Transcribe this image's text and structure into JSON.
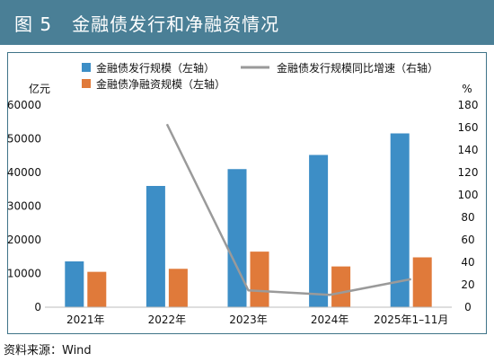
{
  "header": {
    "title": "图 5   金融债发行和净融资情况"
  },
  "footer": {
    "source": "资料来源：Wind"
  },
  "colors": {
    "title_bg": "#4a7f96",
    "frame": "#3f7488",
    "issuance": "#3d8ec6",
    "net_financing": "#e07a3a",
    "growth": "#9a9a9a"
  },
  "chart_data": {
    "type": "bar",
    "categories": [
      "2021年",
      "2022年",
      "2023年",
      "2024年",
      "2025年1–11月"
    ],
    "series": [
      {
        "name": "金融债发行规模（左轴）",
        "type": "bar",
        "axis": "left",
        "color": "#3d8ec6",
        "values": [
          13600,
          36000,
          41000,
          45200,
          51600
        ]
      },
      {
        "name": "金融债净融资规模（左轴）",
        "type": "bar",
        "axis": "left",
        "color": "#e07a3a",
        "values": [
          10500,
          11400,
          16500,
          12100,
          14800
        ]
      },
      {
        "name": "金融债发行规模同比增速（右轴）",
        "type": "line",
        "axis": "right",
        "color": "#9a9a9a",
        "values": [
          null,
          163,
          15,
          11,
          25
        ]
      }
    ],
    "left_axis": {
      "unit": "亿元",
      "min": 0,
      "max": 60000,
      "ticks": [
        0,
        10000,
        20000,
        30000,
        40000,
        50000,
        60000
      ]
    },
    "right_axis": {
      "unit": "%",
      "min": 0,
      "max": 180,
      "ticks": [
        0,
        20,
        40,
        60,
        80,
        100,
        120,
        140,
        160,
        180
      ]
    },
    "grid": false,
    "legend_position": "top"
  }
}
